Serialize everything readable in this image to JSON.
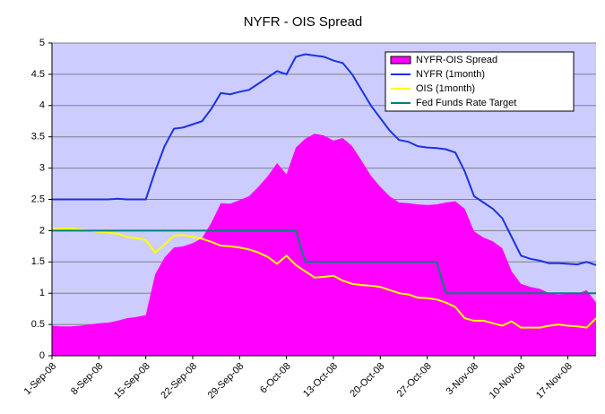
{
  "chart_data": {
    "type": "line",
    "title": "NYFR - OIS Spread",
    "categories": [
      "1-Sep-08",
      null,
      null,
      null,
      null,
      "8-Sep-08",
      null,
      null,
      null,
      null,
      "15-Sep-08",
      null,
      null,
      null,
      null,
      "22-Sep-08",
      null,
      null,
      null,
      null,
      "29-Sep-08",
      null,
      null,
      null,
      null,
      "6-Oct-08",
      null,
      null,
      null,
      null,
      "13-Oct-08",
      null,
      null,
      null,
      null,
      "20-Oct-08",
      null,
      null,
      null,
      null,
      "27-Oct-08",
      null,
      null,
      null,
      null,
      "3-Nov-08",
      null,
      null,
      null,
      null,
      "10-Nov-08",
      null,
      null,
      null,
      null,
      "17-Nov-08",
      null,
      null,
      null
    ],
    "series": [
      {
        "name": "NYFR-OIS Spread",
        "style": "area",
        "color": "#ff00ff",
        "values": [
          0.48,
          0.47,
          0.47,
          0.48,
          0.5,
          0.52,
          0.53,
          0.56,
          0.6,
          0.62,
          0.65,
          1.3,
          1.57,
          1.73,
          1.75,
          1.8,
          1.88,
          2.13,
          2.44,
          2.43,
          2.49,
          2.55,
          2.7,
          2.87,
          3.08,
          2.9,
          3.33,
          3.47,
          3.55,
          3.52,
          3.44,
          3.48,
          3.35,
          3.12,
          2.88,
          2.7,
          2.55,
          2.45,
          2.44,
          2.42,
          2.41,
          2.42,
          2.45,
          2.47,
          2.35,
          1.99,
          1.89,
          1.83,
          1.72,
          1.35,
          1.15,
          1.1,
          1.07,
          1.0,
          0.98,
          0.99,
          0.99,
          1.05,
          0.85
        ]
      },
      {
        "name": "NYFR (1month)",
        "style": "line",
        "color": "#1a32e6",
        "values": [
          2.5,
          2.5,
          2.5,
          2.5,
          2.5,
          2.5,
          2.5,
          2.51,
          2.5,
          2.5,
          2.5,
          2.95,
          3.35,
          3.63,
          3.65,
          3.7,
          3.75,
          3.95,
          4.2,
          4.18,
          4.22,
          4.25,
          4.35,
          4.45,
          4.55,
          4.5,
          4.78,
          4.82,
          4.8,
          4.78,
          4.72,
          4.68,
          4.5,
          4.25,
          4.0,
          3.8,
          3.6,
          3.45,
          3.42,
          3.35,
          3.33,
          3.32,
          3.3,
          3.25,
          2.95,
          2.55,
          2.45,
          2.35,
          2.2,
          1.9,
          1.6,
          1.55,
          1.52,
          1.48,
          1.48,
          1.47,
          1.46,
          1.5,
          1.45
        ]
      },
      {
        "name": "OIS (1month)",
        "style": "line",
        "color": "#ffff00",
        "values": [
          2.02,
          2.03,
          2.03,
          2.02,
          2.0,
          1.98,
          1.97,
          1.95,
          1.9,
          1.88,
          1.85,
          1.65,
          1.78,
          1.92,
          1.93,
          1.9,
          1.87,
          1.82,
          1.76,
          1.75,
          1.73,
          1.7,
          1.65,
          1.58,
          1.47,
          1.6,
          1.45,
          1.35,
          1.25,
          1.26,
          1.28,
          1.2,
          1.15,
          1.13,
          1.12,
          1.1,
          1.05,
          1.0,
          0.98,
          0.93,
          0.92,
          0.9,
          0.85,
          0.78,
          0.6,
          0.56,
          0.56,
          0.52,
          0.48,
          0.55,
          0.45,
          0.45,
          0.45,
          0.48,
          0.5,
          0.48,
          0.47,
          0.45,
          0.6
        ]
      },
      {
        "name": "Fed Funds Rate Target",
        "style": "line",
        "color": "#008080",
        "values": [
          2,
          2,
          2,
          2,
          2,
          2,
          2,
          2,
          2,
          2,
          2,
          2,
          2,
          2,
          2,
          2,
          2,
          2,
          2,
          2,
          2,
          2,
          2,
          2,
          2,
          2,
          2,
          1.5,
          1.5,
          1.5,
          1.5,
          1.5,
          1.5,
          1.5,
          1.5,
          1.5,
          1.5,
          1.5,
          1.5,
          1.5,
          1.5,
          1.5,
          1,
          1,
          1,
          1,
          1,
          1,
          1,
          1,
          1,
          1,
          1,
          1,
          1,
          1,
          1,
          1,
          1
        ]
      }
    ],
    "ylim": [
      0,
      5
    ],
    "yticks": [
      0,
      0.5,
      1,
      1.5,
      2,
      2.5,
      3,
      3.5,
      4,
      4.5,
      5
    ],
    "grid": true,
    "legend": "top-right",
    "plot_background": "#ccccff"
  }
}
